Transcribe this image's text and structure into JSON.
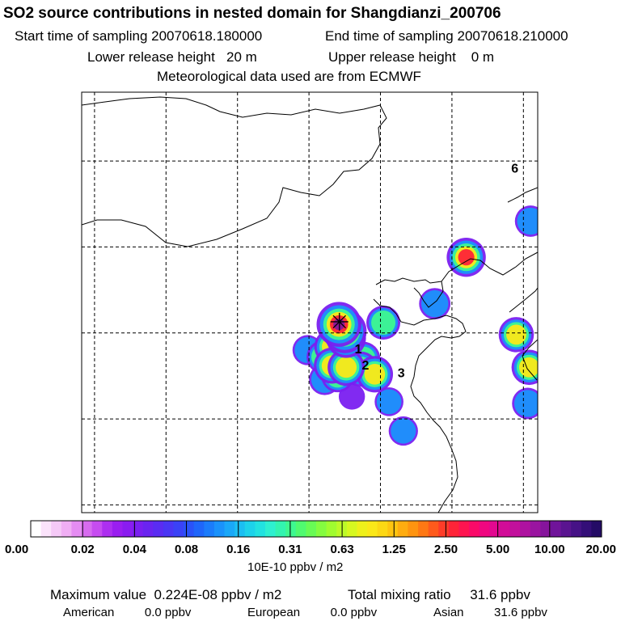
{
  "chart_data": {
    "type": "heatmap",
    "title": "SO2 source contributions in nested domain for Shangdianzi_200706",
    "start_label": "Start time of sampling",
    "start_time": "20070618.180000",
    "end_label": "End time of sampling",
    "end_time": "20070618.210000",
    "lower_label": "Lower release height",
    "lower_value": "20 m",
    "upper_label": "Upper release height",
    "upper_value": "0 m",
    "meteo_text": "Meteorological data used are from ECMWF",
    "colorbar_ticks": [
      "0.00",
      "0.02",
      "0.04",
      "0.08",
      "0.16",
      "0.31",
      "0.63",
      "1.25",
      "2.50",
      "5.00",
      "10.00",
      "20.00"
    ],
    "colorbar_colors": [
      "#ffffff",
      "#fbe3fb",
      "#f5c9f7",
      "#f0aef4",
      "#e58cf2",
      "#d76bef",
      "#c64cf0",
      "#ad2ff0",
      "#9a1ef0",
      "#8a1cf0",
      "#7a1ff0",
      "#6a24f0",
      "#5a2cf2",
      "#4a36f4",
      "#3a42f6",
      "#2a52f8",
      "#1f66fa",
      "#1b7cfb",
      "#1a92fb",
      "#1aa8f8",
      "#1bbef2",
      "#1dd2ea",
      "#22e2e0",
      "#2ef0d0",
      "#33f4b0",
      "#3ef890",
      "#50fa70",
      "#68fb55",
      "#84fc40",
      "#a0fc30",
      "#bcfa28",
      "#d6f820",
      "#eef01a",
      "#fae818",
      "#fcd814",
      "#fec410",
      "#feac10",
      "#fe9410",
      "#fe7814",
      "#fe5a1c",
      "#fe3c28",
      "#fe2438",
      "#fe1450",
      "#fa0a68",
      "#f00680",
      "#e20890",
      "#d20c98",
      "#c2109c",
      "#ae12a0",
      "#9a14a0",
      "#86149c",
      "#70149a",
      "#5a1490",
      "#461286",
      "#340f78",
      "#240c66"
    ],
    "colorbar_unit": "10E-10 ppbv / m2",
    "max_label": "Maximum value",
    "max_value": "0.224E-08 ppbv / m2",
    "total_label": "Total mixing ratio",
    "total_value": "31.6 ppbv",
    "american_label": "American",
    "american_value": "0.0 ppbv",
    "european_label": "European",
    "european_value": "0.0 ppbv",
    "asian_label": "Asian",
    "asian_value": "31.6 ppbv",
    "station_markers": [
      {
        "label": "1",
        "lon": 118.45,
        "lat": 39.1
      },
      {
        "label": "2",
        "lon": 118.95,
        "lat": 38.15
      },
      {
        "label": "3",
        "lon": 121.45,
        "lat": 37.7
      },
      {
        "label": "6",
        "lon": 129.4,
        "lat": 49.6
      }
    ],
    "source_station": {
      "lon": 117.13,
      "lat": 40.65
    },
    "grid_lons": [
      100,
      105,
      110,
      115,
      120,
      125,
      130
    ],
    "grid_lats": [
      30,
      35,
      40,
      45,
      50
    ],
    "plumes": [
      {
        "lon": 117.6,
        "lat": 39.7,
        "level": 0.72
      },
      {
        "lon": 117.1,
        "lat": 40.5,
        "level": 0.92
      },
      {
        "lon": 117.5,
        "lat": 40.1,
        "level": 0.88
      },
      {
        "lon": 116.6,
        "lat": 39.2,
        "level": 0.55
      },
      {
        "lon": 116.0,
        "lat": 38.6,
        "level": 0.48
      },
      {
        "lon": 116.6,
        "lat": 38.1,
        "level": 0.58
      },
      {
        "lon": 117.6,
        "lat": 38.0,
        "level": 0.62
      },
      {
        "lon": 118.6,
        "lat": 37.9,
        "level": 0.55
      },
      {
        "lon": 119.6,
        "lat": 37.6,
        "level": 0.6
      },
      {
        "lon": 118.8,
        "lat": 38.5,
        "level": 0.5
      },
      {
        "lon": 117.0,
        "lat": 37.5,
        "level": 0.45
      },
      {
        "lon": 116.1,
        "lat": 37.3,
        "level": 0.4
      },
      {
        "lon": 114.9,
        "lat": 39.0,
        "level": 0.35
      },
      {
        "lon": 120.2,
        "lat": 40.6,
        "level": 0.5
      },
      {
        "lon": 123.8,
        "lat": 41.7,
        "level": 0.4
      },
      {
        "lon": 126.0,
        "lat": 44.4,
        "level": 0.7
      },
      {
        "lon": 130.5,
        "lat": 46.5,
        "level": 0.4
      },
      {
        "lon": 129.5,
        "lat": 39.9,
        "level": 0.55
      },
      {
        "lon": 130.4,
        "lat": 38.0,
        "level": 0.55
      },
      {
        "lon": 130.3,
        "lat": 35.9,
        "level": 0.4
      },
      {
        "lon": 120.6,
        "lat": 36.0,
        "level": 0.3
      },
      {
        "lon": 121.6,
        "lat": 34.3,
        "level": 0.32
      },
      {
        "lon": 118.0,
        "lat": 36.3,
        "level": 0.2
      }
    ]
  }
}
